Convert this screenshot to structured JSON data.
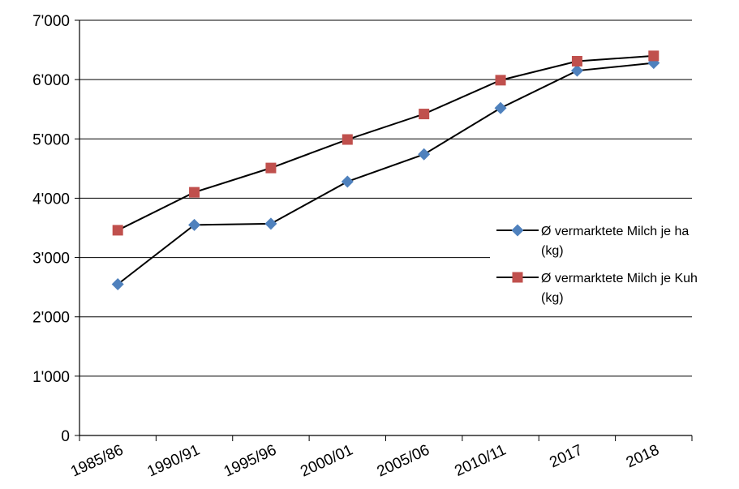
{
  "chart_data": {
    "type": "line",
    "title": "",
    "xlabel": "",
    "ylabel": "",
    "categories": [
      "1985/86",
      "1990/91",
      "1995/96",
      "2000/01",
      "2005/06",
      "2010/11",
      "2017",
      "2018"
    ],
    "ylim": [
      0,
      7000
    ],
    "yticks": [
      {
        "value": 0,
        "label": "0"
      },
      {
        "value": 1000,
        "label": "1'000"
      },
      {
        "value": 2000,
        "label": "2'000"
      },
      {
        "value": 3000,
        "label": "3'000"
      },
      {
        "value": 4000,
        "label": "4'000"
      },
      {
        "value": 5000,
        "label": "5'000"
      },
      {
        "value": 6000,
        "label": "6'000"
      },
      {
        "value": 7000,
        "label": "7'000"
      }
    ],
    "grid": "horizontal",
    "legend_position": "right",
    "series": [
      {
        "name": "Ø vermarktete Milch je ha (kg)",
        "legend_lines": [
          "Ø vermarktete Milch je ha",
          "(kg)"
        ],
        "marker": "diamond",
        "color": "#4f81bd",
        "values": [
          2550,
          3550,
          3570,
          4280,
          4740,
          5520,
          6150,
          6280
        ]
      },
      {
        "name": "Ø vermarktete Milch je Kuh (kg)",
        "legend_lines": [
          "Ø vermarktete Milch je Kuh",
          "(kg)"
        ],
        "marker": "square",
        "color": "#c0504d",
        "values": [
          3460,
          4100,
          4510,
          4990,
          5420,
          5990,
          6310,
          6400
        ]
      }
    ]
  }
}
